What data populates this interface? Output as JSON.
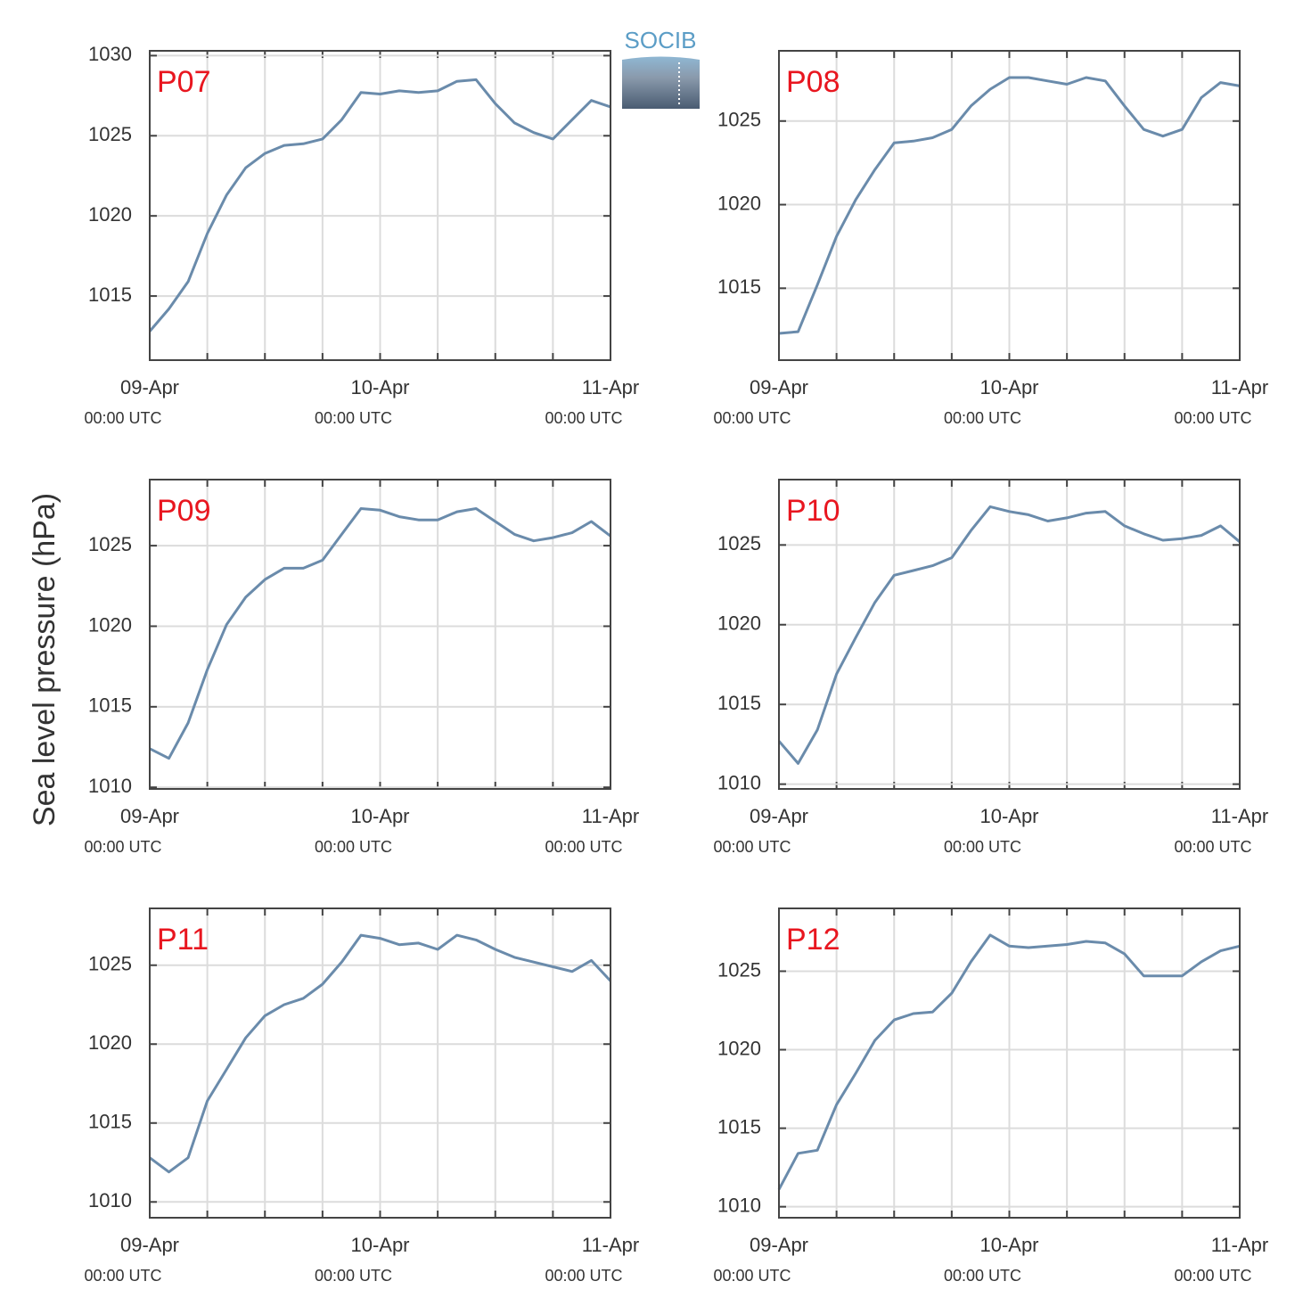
{
  "logo": "SOCIB",
  "ylabel": "Sea level pressure (hPa)",
  "chart_data": [
    {
      "type": "line",
      "title": "P07",
      "color": "#6a8bab",
      "grid": true,
      "x": [
        "09-Apr 00:00",
        "09-Apr 02:00",
        "09-Apr 04:00",
        "09-Apr 06:00",
        "09-Apr 08:00",
        "09-Apr 10:00",
        "09-Apr 12:00",
        "09-Apr 14:00",
        "09-Apr 16:00",
        "09-Apr 18:00",
        "09-Apr 20:00",
        "09-Apr 22:00",
        "10-Apr 00:00",
        "10-Apr 02:00",
        "10-Apr 04:00",
        "10-Apr 06:00",
        "10-Apr 08:00",
        "10-Apr 10:00",
        "10-Apr 12:00",
        "10-Apr 14:00",
        "10-Apr 16:00",
        "10-Apr 18:00",
        "10-Apr 20:00",
        "10-Apr 22:00",
        "11-Apr 00:00"
      ],
      "values": [
        1012.8,
        1014.2,
        1015.9,
        1018.9,
        1021.3,
        1023.0,
        1023.9,
        1024.4,
        1024.5,
        1024.8,
        1026.0,
        1027.7,
        1027.6,
        1027.8,
        1027.7,
        1027.8,
        1028.4,
        1028.5,
        1027.0,
        1025.8,
        1025.2,
        1024.8,
        1026.0,
        1027.2,
        1026.8
      ],
      "xlim": [
        "09-Apr 00:00",
        "11-Apr 00:00"
      ],
      "xticks": [
        {
          "value": "09-Apr 00:00",
          "label": [
            "09-Apr",
            "00:00 UTC"
          ]
        },
        {
          "value": "10-Apr 00:00",
          "label": [
            "10-Apr",
            "00:00 UTC"
          ]
        },
        {
          "value": "11-Apr 00:00",
          "label": [
            "11-Apr",
            "00:00 UTC"
          ]
        }
      ],
      "xminorticks": [
        "09-Apr 06:00",
        "09-Apr 12:00",
        "09-Apr 18:00",
        "10-Apr 06:00",
        "10-Apr 12:00",
        "10-Apr 18:00"
      ],
      "ylim": [
        1011,
        1030.3
      ],
      "yticks": [
        1015,
        1020,
        1025,
        1030
      ]
    },
    {
      "type": "line",
      "title": "P08",
      "color": "#6a8bab",
      "grid": true,
      "x": [
        "09-Apr 00:00",
        "09-Apr 02:00",
        "09-Apr 04:00",
        "09-Apr 06:00",
        "09-Apr 08:00",
        "09-Apr 10:00",
        "09-Apr 12:00",
        "09-Apr 14:00",
        "09-Apr 16:00",
        "09-Apr 18:00",
        "09-Apr 20:00",
        "09-Apr 22:00",
        "10-Apr 00:00",
        "10-Apr 02:00",
        "10-Apr 04:00",
        "10-Apr 06:00",
        "10-Apr 08:00",
        "10-Apr 10:00",
        "10-Apr 12:00",
        "10-Apr 14:00",
        "10-Apr 16:00",
        "10-Apr 18:00",
        "10-Apr 20:00",
        "10-Apr 22:00",
        "11-Apr 00:00"
      ],
      "values": [
        1012.3,
        1012.4,
        1015.2,
        1018.1,
        1020.3,
        1022.1,
        1023.7,
        1023.8,
        1024.0,
        1024.5,
        1025.9,
        1026.9,
        1027.6,
        1027.6,
        1027.4,
        1027.2,
        1027.6,
        1027.4,
        1025.9,
        1024.5,
        1024.1,
        1024.5,
        1026.4,
        1027.3,
        1027.1
      ],
      "xlim": [
        "09-Apr 00:00",
        "11-Apr 00:00"
      ],
      "xticks": [
        {
          "value": "09-Apr 00:00",
          "label": [
            "09-Apr",
            "00:00 UTC"
          ]
        },
        {
          "value": "10-Apr 00:00",
          "label": [
            "10-Apr",
            "00:00 UTC"
          ]
        },
        {
          "value": "11-Apr 00:00",
          "label": [
            "11-Apr",
            "00:00 UTC"
          ]
        }
      ],
      "xminorticks": [
        "09-Apr 06:00",
        "09-Apr 12:00",
        "09-Apr 18:00",
        "10-Apr 06:00",
        "10-Apr 12:00",
        "10-Apr 18:00"
      ],
      "ylim": [
        1010.7,
        1029.2
      ],
      "yticks": [
        1015,
        1020,
        1025
      ]
    },
    {
      "type": "line",
      "title": "P09",
      "color": "#6a8bab",
      "grid": true,
      "x": [
        "09-Apr 00:00",
        "09-Apr 02:00",
        "09-Apr 04:00",
        "09-Apr 06:00",
        "09-Apr 08:00",
        "09-Apr 10:00",
        "09-Apr 12:00",
        "09-Apr 14:00",
        "09-Apr 16:00",
        "09-Apr 18:00",
        "09-Apr 20:00",
        "09-Apr 22:00",
        "10-Apr 00:00",
        "10-Apr 02:00",
        "10-Apr 04:00",
        "10-Apr 06:00",
        "10-Apr 08:00",
        "10-Apr 10:00",
        "10-Apr 12:00",
        "10-Apr 14:00",
        "10-Apr 16:00",
        "10-Apr 18:00",
        "10-Apr 20:00",
        "10-Apr 22:00",
        "11-Apr 00:00"
      ],
      "values": [
        1012.4,
        1011.8,
        1014.0,
        1017.3,
        1020.1,
        1021.8,
        1022.9,
        1023.6,
        1023.6,
        1024.1,
        1025.7,
        1027.3,
        1027.2,
        1026.8,
        1026.6,
        1026.6,
        1027.1,
        1027.3,
        1026.5,
        1025.7,
        1025.3,
        1025.5,
        1025.8,
        1026.5,
        1025.6
      ],
      "xlim": [
        "09-Apr 00:00",
        "11-Apr 00:00"
      ],
      "xticks": [
        {
          "value": "09-Apr 00:00",
          "label": [
            "09-Apr",
            "00:00 UTC"
          ]
        },
        {
          "value": "10-Apr 00:00",
          "label": [
            "10-Apr",
            "00:00 UTC"
          ]
        },
        {
          "value": "11-Apr 00:00",
          "label": [
            "11-Apr",
            "00:00 UTC"
          ]
        }
      ],
      "xminorticks": [
        "09-Apr 06:00",
        "09-Apr 12:00",
        "09-Apr 18:00",
        "10-Apr 06:00",
        "10-Apr 12:00",
        "10-Apr 18:00"
      ],
      "ylim": [
        1009.9,
        1029.1
      ],
      "yticks": [
        1010,
        1015,
        1020,
        1025
      ]
    },
    {
      "type": "line",
      "title": "P10",
      "color": "#6a8bab",
      "grid": true,
      "x": [
        "09-Apr 00:00",
        "09-Apr 02:00",
        "09-Apr 04:00",
        "09-Apr 06:00",
        "09-Apr 08:00",
        "09-Apr 10:00",
        "09-Apr 12:00",
        "09-Apr 14:00",
        "09-Apr 16:00",
        "09-Apr 18:00",
        "09-Apr 20:00",
        "09-Apr 22:00",
        "10-Apr 00:00",
        "10-Apr 02:00",
        "10-Apr 04:00",
        "10-Apr 06:00",
        "10-Apr 08:00",
        "10-Apr 10:00",
        "10-Apr 12:00",
        "10-Apr 14:00",
        "10-Apr 16:00",
        "10-Apr 18:00",
        "10-Apr 20:00",
        "10-Apr 22:00",
        "11-Apr 00:00"
      ],
      "values": [
        1012.7,
        1011.3,
        1013.4,
        1016.9,
        1019.2,
        1021.4,
        1023.1,
        1023.4,
        1023.7,
        1024.2,
        1025.9,
        1027.4,
        1027.1,
        1026.9,
        1026.5,
        1026.7,
        1027.0,
        1027.1,
        1026.2,
        1025.7,
        1025.3,
        1025.4,
        1025.6,
        1026.2,
        1025.2
      ],
      "xlim": [
        "09-Apr 00:00",
        "11-Apr 00:00"
      ],
      "xticks": [
        {
          "value": "09-Apr 00:00",
          "label": [
            "09-Apr",
            "00:00 UTC"
          ]
        },
        {
          "value": "10-Apr 00:00",
          "label": [
            "10-Apr",
            "00:00 UTC"
          ]
        },
        {
          "value": "11-Apr 00:00",
          "label": [
            "11-Apr",
            "00:00 UTC"
          ]
        }
      ],
      "xminorticks": [
        "09-Apr 06:00",
        "09-Apr 12:00",
        "09-Apr 18:00",
        "10-Apr 06:00",
        "10-Apr 12:00",
        "10-Apr 18:00"
      ],
      "ylim": [
        1009.7,
        1029.1
      ],
      "yticks": [
        1010,
        1015,
        1020,
        1025
      ]
    },
    {
      "type": "line",
      "title": "P11",
      "color": "#6a8bab",
      "grid": true,
      "x": [
        "09-Apr 00:00",
        "09-Apr 02:00",
        "09-Apr 04:00",
        "09-Apr 06:00",
        "09-Apr 08:00",
        "09-Apr 10:00",
        "09-Apr 12:00",
        "09-Apr 14:00",
        "09-Apr 16:00",
        "09-Apr 18:00",
        "09-Apr 20:00",
        "09-Apr 22:00",
        "10-Apr 00:00",
        "10-Apr 02:00",
        "10-Apr 04:00",
        "10-Apr 06:00",
        "10-Apr 08:00",
        "10-Apr 10:00",
        "10-Apr 12:00",
        "10-Apr 14:00",
        "10-Apr 16:00",
        "10-Apr 18:00",
        "10-Apr 20:00",
        "10-Apr 22:00",
        "11-Apr 00:00"
      ],
      "values": [
        1012.8,
        1011.9,
        1012.8,
        1016.4,
        1018.4,
        1020.4,
        1021.8,
        1022.5,
        1022.9,
        1023.8,
        1025.2,
        1026.9,
        1026.7,
        1026.3,
        1026.4,
        1026.0,
        1026.9,
        1026.6,
        1026.0,
        1025.5,
        1025.2,
        1024.9,
        1024.6,
        1025.3,
        1024.0
      ],
      "xlim": [
        "09-Apr 00:00",
        "11-Apr 00:00"
      ],
      "xticks": [
        {
          "value": "09-Apr 00:00",
          "label": [
            "09-Apr",
            "00:00 UTC"
          ]
        },
        {
          "value": "10-Apr 00:00",
          "label": [
            "10-Apr",
            "00:00 UTC"
          ]
        },
        {
          "value": "11-Apr 00:00",
          "label": [
            "11-Apr",
            "00:00 UTC"
          ]
        }
      ],
      "xminorticks": [
        "09-Apr 06:00",
        "09-Apr 12:00",
        "09-Apr 18:00",
        "10-Apr 06:00",
        "10-Apr 12:00",
        "10-Apr 18:00"
      ],
      "ylim": [
        1009.0,
        1028.6
      ],
      "yticks": [
        1010,
        1015,
        1020,
        1025
      ]
    },
    {
      "type": "line",
      "title": "P12",
      "color": "#6a8bab",
      "grid": true,
      "x": [
        "09-Apr 00:00",
        "09-Apr 02:00",
        "09-Apr 04:00",
        "09-Apr 06:00",
        "09-Apr 08:00",
        "09-Apr 10:00",
        "09-Apr 12:00",
        "09-Apr 14:00",
        "09-Apr 16:00",
        "09-Apr 18:00",
        "09-Apr 20:00",
        "09-Apr 22:00",
        "10-Apr 00:00",
        "10-Apr 02:00",
        "10-Apr 04:00",
        "10-Apr 06:00",
        "10-Apr 08:00",
        "10-Apr 10:00",
        "10-Apr 12:00",
        "10-Apr 14:00",
        "10-Apr 16:00",
        "10-Apr 18:00",
        "10-Apr 20:00",
        "10-Apr 22:00",
        "11-Apr 00:00"
      ],
      "values": [
        1011.1,
        1013.4,
        1013.6,
        1016.5,
        1018.5,
        1020.6,
        1021.9,
        1022.3,
        1022.4,
        1023.6,
        1025.6,
        1027.3,
        1026.6,
        1026.5,
        1026.6,
        1026.7,
        1026.9,
        1026.8,
        1026.1,
        1024.7,
        1024.7,
        1024.7,
        1025.6,
        1026.3,
        1026.6
      ],
      "xlim": [
        "09-Apr 00:00",
        "11-Apr 00:00"
      ],
      "xticks": [
        {
          "value": "09-Apr 00:00",
          "label": [
            "09-Apr",
            "00:00 UTC"
          ]
        },
        {
          "value": "10-Apr 00:00",
          "label": [
            "10-Apr",
            "00:00 UTC"
          ]
        },
        {
          "value": "11-Apr 00:00",
          "label": [
            "11-Apr",
            "00:00 UTC"
          ]
        }
      ],
      "xminorticks": [
        "09-Apr 06:00",
        "09-Apr 12:00",
        "09-Apr 18:00",
        "10-Apr 06:00",
        "10-Apr 12:00",
        "10-Apr 18:00"
      ],
      "ylim": [
        1009.3,
        1029.0
      ],
      "yticks": [
        1010,
        1015,
        1020,
        1025
      ]
    }
  ]
}
